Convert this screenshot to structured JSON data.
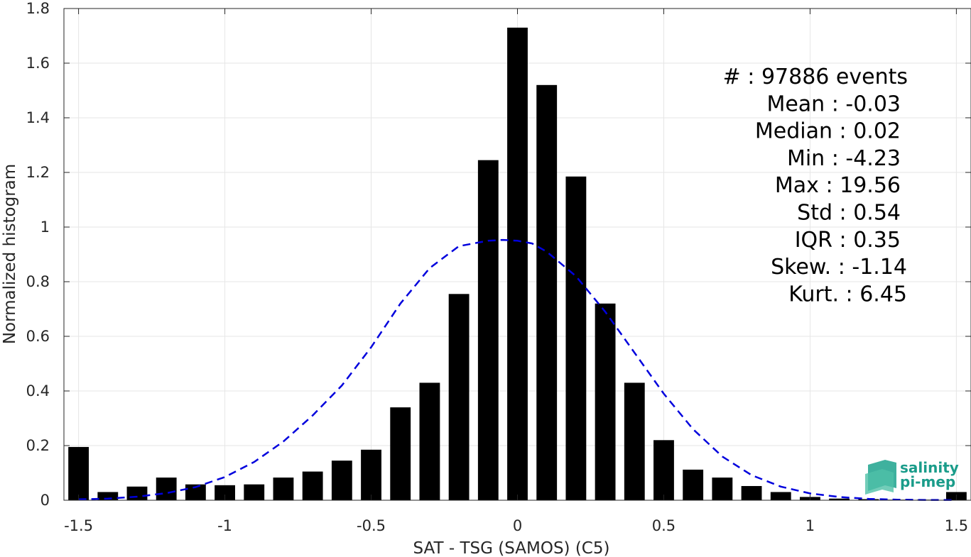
{
  "chart_data": {
    "type": "bar",
    "xlabel": "SAT - TSG (SAMOS) (C5)",
    "ylabel": "Normalized histogram",
    "xlim": [
      -1.55,
      1.55
    ],
    "ylim": [
      0,
      1.8
    ],
    "xticks": [
      -1.5,
      -1,
      -0.5,
      0,
      0.5,
      1,
      1.5
    ],
    "xtick_labels": [
      "-1.5",
      "-1",
      "-0.5",
      "0",
      "0.5",
      "1",
      "1.5"
    ],
    "yticks": [
      0,
      0.2,
      0.4,
      0.6,
      0.8,
      1,
      1.2,
      1.4,
      1.6,
      1.8
    ],
    "ytick_labels": [
      "0",
      "0.2",
      "0.4",
      "0.6",
      "0.8",
      "1",
      "1.2",
      "1.4",
      "1.6",
      "1.8"
    ],
    "grid": true,
    "bar_color": "#000000",
    "bars": {
      "x": [
        -1.5,
        -1.4,
        -1.3,
        -1.2,
        -1.1,
        -1.0,
        -0.9,
        -0.8,
        -0.7,
        -0.6,
        -0.5,
        -0.4,
        -0.3,
        -0.2,
        -0.1,
        0.0,
        0.1,
        0.2,
        0.3,
        0.4,
        0.5,
        0.6,
        0.7,
        0.8,
        0.9,
        1.0,
        1.1,
        1.2,
        1.3,
        1.4,
        1.5
      ],
      "values": [
        0.195,
        0.03,
        0.05,
        0.083,
        0.058,
        0.055,
        0.058,
        0.083,
        0.105,
        0.145,
        0.185,
        0.34,
        0.43,
        0.755,
        1.245,
        1.73,
        1.52,
        1.185,
        0.72,
        0.43,
        0.22,
        0.112,
        0.083,
        0.052,
        0.03,
        0.012,
        0.006,
        0.004,
        0.002,
        0.002,
        0.03
      ]
    },
    "fit": {
      "style": "dashed",
      "color": "#0000dd",
      "x": [
        -1.5,
        -1.4,
        -1.3,
        -1.2,
        -1.1,
        -1.0,
        -0.9,
        -0.8,
        -0.7,
        -0.6,
        -0.5,
        -0.4,
        -0.3,
        -0.2,
        -0.1,
        -0.05,
        0.0,
        0.05,
        0.1,
        0.2,
        0.3,
        0.4,
        0.5,
        0.6,
        0.7,
        0.8,
        0.9,
        1.0,
        1.1,
        1.2,
        1.3,
        1.4,
        1.5
      ],
      "values": [
        0.003,
        0.006,
        0.013,
        0.026,
        0.048,
        0.085,
        0.14,
        0.215,
        0.31,
        0.42,
        0.56,
        0.72,
        0.85,
        0.93,
        0.95,
        0.953,
        0.95,
        0.94,
        0.91,
        0.82,
        0.69,
        0.54,
        0.39,
        0.26,
        0.16,
        0.092,
        0.05,
        0.025,
        0.012,
        0.005,
        0.002,
        0.001,
        0.001
      ]
    },
    "stats": [
      "#  : 97886 events",
      "Mean : -0.03",
      "Median : 0.02",
      "Min : -4.23",
      "Max : 19.56",
      "Std : 0.54",
      "IQR : 0.35",
      "Skew. : -1.14",
      "Kurt. : 6.45"
    ]
  },
  "logo": {
    "line1": "salinity",
    "line2": "pi-mep"
  }
}
